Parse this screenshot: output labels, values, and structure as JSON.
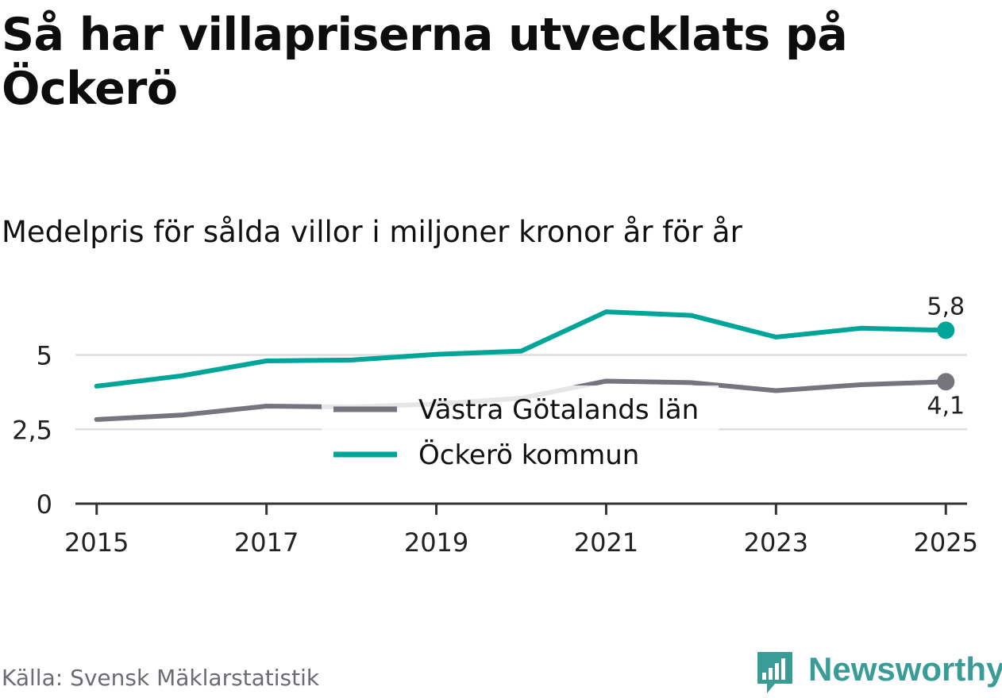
{
  "title": "Så har villapriserna utvecklats på Öckerö",
  "subtitle": "Medelpris för sålda villor i miljoner kronor år för år",
  "source": "Källa: Svensk Mäklarstatistik",
  "brand": "Newsworthy",
  "colors": {
    "okero": "#00a59a",
    "vgl": "#76757e",
    "grid": "#dddddd",
    "axis": "#333333",
    "brand": "#3a9c97"
  },
  "chart_data": {
    "type": "line",
    "x": [
      2015,
      2016,
      2017,
      2018,
      2019,
      2020,
      2021,
      2022,
      2023,
      2024,
      2025
    ],
    "xticks": [
      "2015",
      "2017",
      "2019",
      "2021",
      "2023",
      "2025"
    ],
    "yticks": [
      "0",
      "2,5",
      "5"
    ],
    "ylim": [
      0,
      7.6
    ],
    "xlim": [
      2014.75,
      2025.25
    ],
    "series": [
      {
        "name": "Västra Götalands län",
        "color": "#76757e",
        "values": [
          2.83,
          2.98,
          3.28,
          3.25,
          3.35,
          3.55,
          4.12,
          4.07,
          3.8,
          4.0,
          4.1
        ],
        "end_label": "4,1"
      },
      {
        "name": "Öckerö kommun",
        "color": "#00a59a",
        "values": [
          3.95,
          4.3,
          4.8,
          4.83,
          5.02,
          5.13,
          6.45,
          6.33,
          5.6,
          5.9,
          5.83
        ],
        "end_label": "5,8"
      }
    ],
    "legend_position": "center"
  }
}
